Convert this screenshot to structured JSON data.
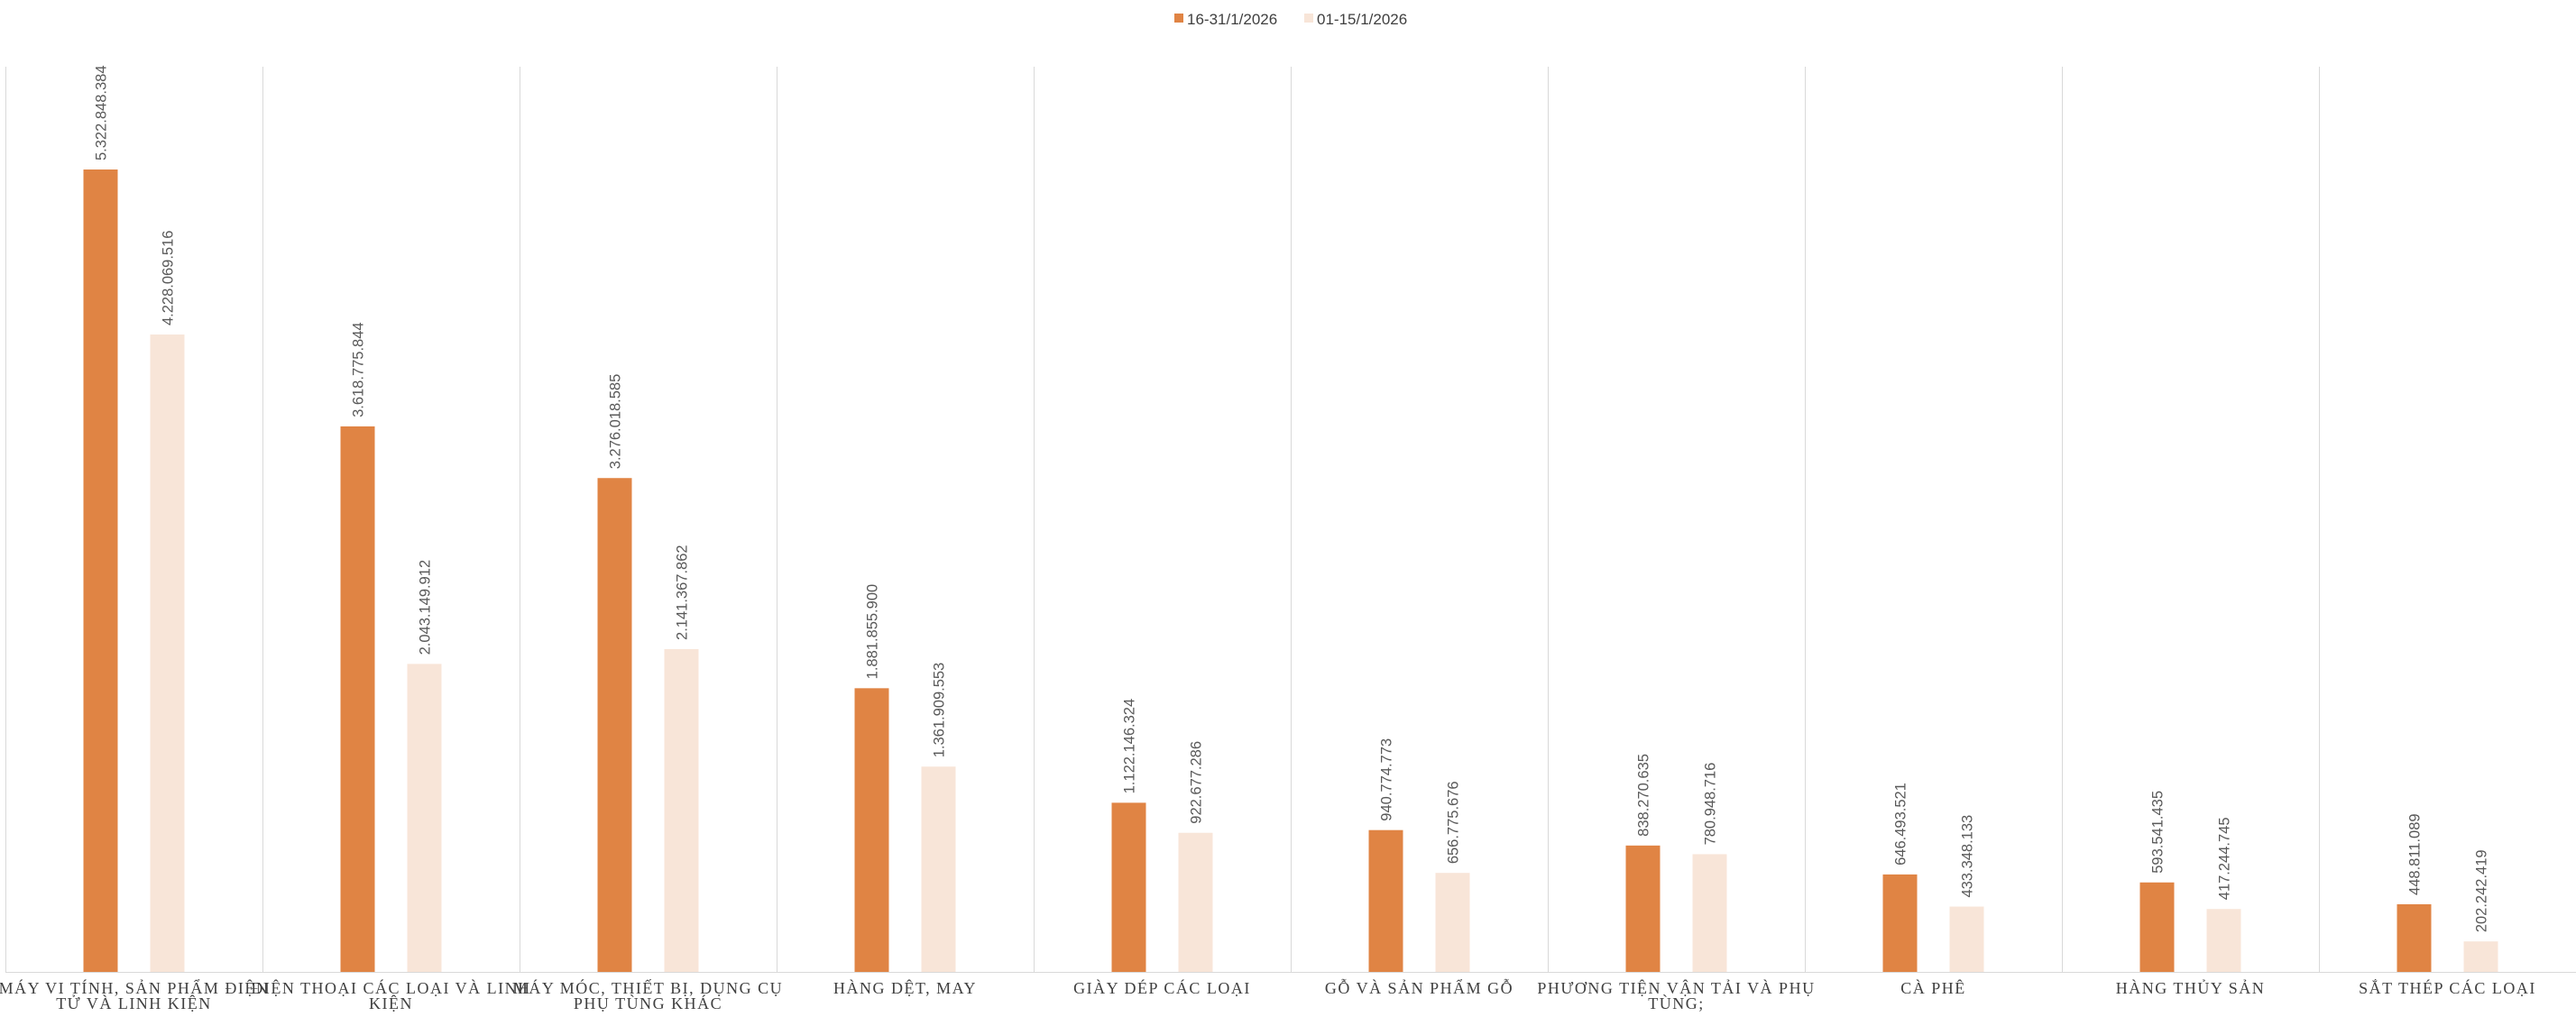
{
  "chart_data": {
    "type": "bar",
    "legend_position": "top-center",
    "gridlines": "vertical-category-separators",
    "y_axis_visible": false,
    "ylim": [
      0,
      6000000000
    ],
    "categories": [
      [
        "MÁY VI TÍNH, SẢN PHẨM ĐIỆN",
        "TỬ VÀ LINH KIỆN"
      ],
      [
        "ĐIỆN THOẠI CÁC LOẠI VÀ LINH",
        "KIỆN"
      ],
      [
        "MÁY MÓC, THIẾT BỊ, DỤNG CỤ",
        "PHỤ TÙNG KHÁC"
      ],
      [
        "HÀNG DỆT, MAY"
      ],
      [
        "GIÀY DÉP CÁC LOẠI"
      ],
      [
        "GỖ VÀ SẢN PHẨM GỖ"
      ],
      [
        "PHƯƠNG TIỆN VẬN TẢI VÀ PHỤ",
        "TÙNG;"
      ],
      [
        "CÀ PHÊ"
      ],
      [
        "HÀNG THỦY SẢN"
      ],
      [
        "SẮT THÉP CÁC LOẠI"
      ]
    ],
    "series": [
      {
        "name": "16-31/1/2026",
        "color": "#E08444",
        "values": [
          5322848384,
          3618775844,
          3276018585,
          1881855900,
          1122146324,
          940774773,
          838270635,
          646493521,
          593541435,
          448811089
        ],
        "labels": [
          "5.322.848.384",
          "3.618.775.844",
          "3.276.018.585",
          "1.881.855.900",
          "1.122.146.324",
          "940.774.773",
          "838.270.635",
          "646.493.521",
          "593.541.435",
          "448.811.089"
        ]
      },
      {
        "name": "01-15/1/2026",
        "color": "#F8E5D8",
        "values": [
          4228069516,
          2043149912,
          2141367862,
          1361909553,
          922677286,
          656775676,
          780948716,
          433348133,
          417244745,
          202242419
        ],
        "labels": [
          "4.228.069.516",
          "2.043.149.912",
          "2.141.367.862",
          "1.361.909.553",
          "922.677.286",
          "656.775.676",
          "780.948.716",
          "433.348.133",
          "417.244.745",
          "202.242.419"
        ]
      }
    ]
  }
}
